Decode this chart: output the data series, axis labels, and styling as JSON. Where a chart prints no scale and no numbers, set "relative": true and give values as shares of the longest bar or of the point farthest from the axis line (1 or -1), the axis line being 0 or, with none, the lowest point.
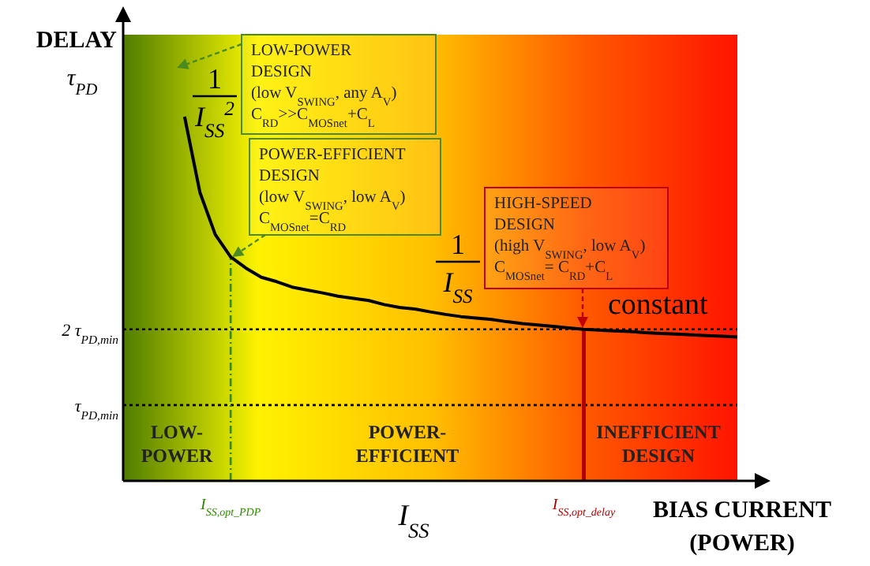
{
  "chart_data": {
    "type": "line",
    "relative": true,
    "ylabel": "DELAY\nτ$_{PD}$",
    "xlabel": "BIAS CURRENT\n(POWER)",
    "categories": [
      null,
      null,
      null,
      null,
      null,
      null,
      null,
      "I$_{SS,opt_PDP}$",
      null,
      null,
      null,
      null,
      null,
      null,
      null,
      null,
      null,
      null,
      null,
      null,
      null,
      null,
      null,
      null,
      null,
      null,
      null,
      null,
      null,
      null,
      "I$_{SS,opt_delay}$",
      null,
      null,
      null,
      null,
      null,
      null,
      null,
      null,
      null,
      null
    ],
    "series": [
      {
        "color": "#000000",
        "values": [
          null,
          null,
          null,
          null,
          1,
          0.792,
          0.676,
          0.615,
          0.584,
          0.559,
          0.547,
          0.532,
          0.524,
          0.516,
          0.507,
          0.501,
          0.495,
          0.484,
          0.476,
          0.472,
          0.464,
          0.457,
          0.451,
          0.447,
          0.443,
          0.437,
          0.432,
          0.428,
          0.424,
          0.42,
          0.416,
          0.414,
          0.412,
          0.41,
          0.407,
          0.405,
          0.403,
          0.401,
          0.399,
          0.397,
          0.395
        ]
      }
    ],
    "ref_lines": [
      {
        "axis": "y",
        "value": 0.416,
        "label": "2 τ$_{PD,min}$",
        "color": "#000000",
        "line_style": "dotted"
      },
      {
        "axis": "y",
        "value": 0.208,
        "label": "τ$_{PD,min}$",
        "color": "#000000",
        "line_style": "dotted"
      },
      {
        "axis": "x",
        "value": "I$_{SS,opt_PDP}$",
        "color": "#2e8b00",
        "line_style": "dashed"
      },
      {
        "axis": "x",
        "value": "I$_{SS,opt_delay}$",
        "color": "#b00000",
        "line_style": "solid"
      }
    ],
    "annotations": [
      "1\nI$_{SS}$$^{2}$",
      "1\nI$_{SS}$",
      "constant",
      "I$_{SS}$",
      "LOW-POWER\nDESIGN\n(low V$_{SWING}$, any A$_{V}$)\nC$_{RD}$>>C$_{MOSnet}$+C$_{L}$",
      "POWER-EFFICIENT\nDESIGN\n(low V$_{SWING}$, low A$_{V}$)\nC$_{MOSnet}$=C$_{RD}$",
      "HIGH-SPEED\nDESIGN\n(high V$_{SWING}$, low A$_{V}$)\nC$_{MOSnet}$= C$_{RD}$+C$_{L}$",
      "LOW-POWER",
      "POWER-EFFICIENT",
      "INEFFICIENT DESIGN"
    ]
  }
}
